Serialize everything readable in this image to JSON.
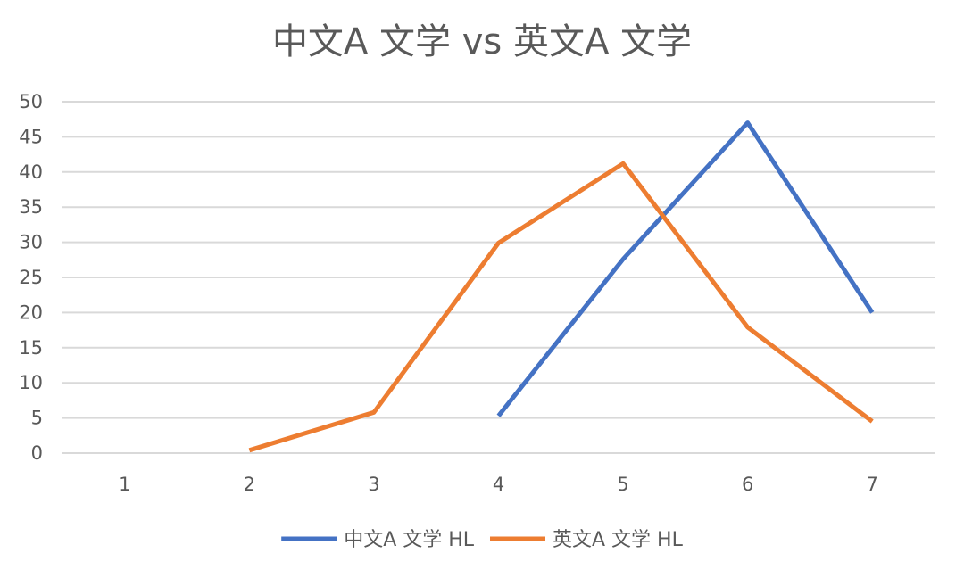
{
  "chart_data": {
    "type": "line",
    "title": "中文A 文学 vs 英文A 文学",
    "xlabel": "",
    "ylabel": "",
    "categories": [
      "1",
      "2",
      "3",
      "4",
      "5",
      "6",
      "7"
    ],
    "ylim": [
      0,
      50
    ],
    "yticks": [
      0,
      5,
      10,
      15,
      20,
      25,
      30,
      35,
      40,
      45,
      50
    ],
    "grid": true,
    "legend_position": "bottom",
    "series": [
      {
        "name": "中文A  文学 HL",
        "color": "#4472c4",
        "values": [
          null,
          null,
          null,
          5.3,
          27.6,
          47,
          20
        ]
      },
      {
        "name": "英文A  文学 HL",
        "color": "#ed7d31",
        "values": [
          null,
          0.4,
          5.8,
          29.9,
          41.2,
          17.9,
          4.5
        ]
      }
    ]
  }
}
